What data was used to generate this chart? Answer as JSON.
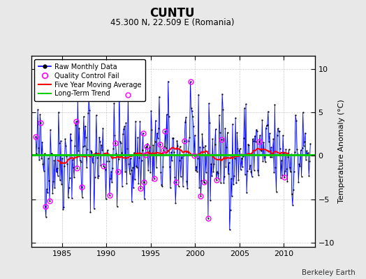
{
  "title": "CUNTU",
  "subtitle": "45.300 N, 22.509 E (Romania)",
  "ylabel": "Temperature Anomaly (°C)",
  "credit": "Berkeley Earth",
  "xlim": [
    1981.5,
    2013.5
  ],
  "ylim": [
    -10.5,
    11.5
  ],
  "yticks": [
    -10,
    -5,
    0,
    5,
    10
  ],
  "xticks": [
    1985,
    1990,
    1995,
    2000,
    2005,
    2010
  ],
  "bg_color": "#e8e8e8",
  "plot_bg_color": "#ffffff",
  "long_term_trend_y": 0.12,
  "seed": 42
}
